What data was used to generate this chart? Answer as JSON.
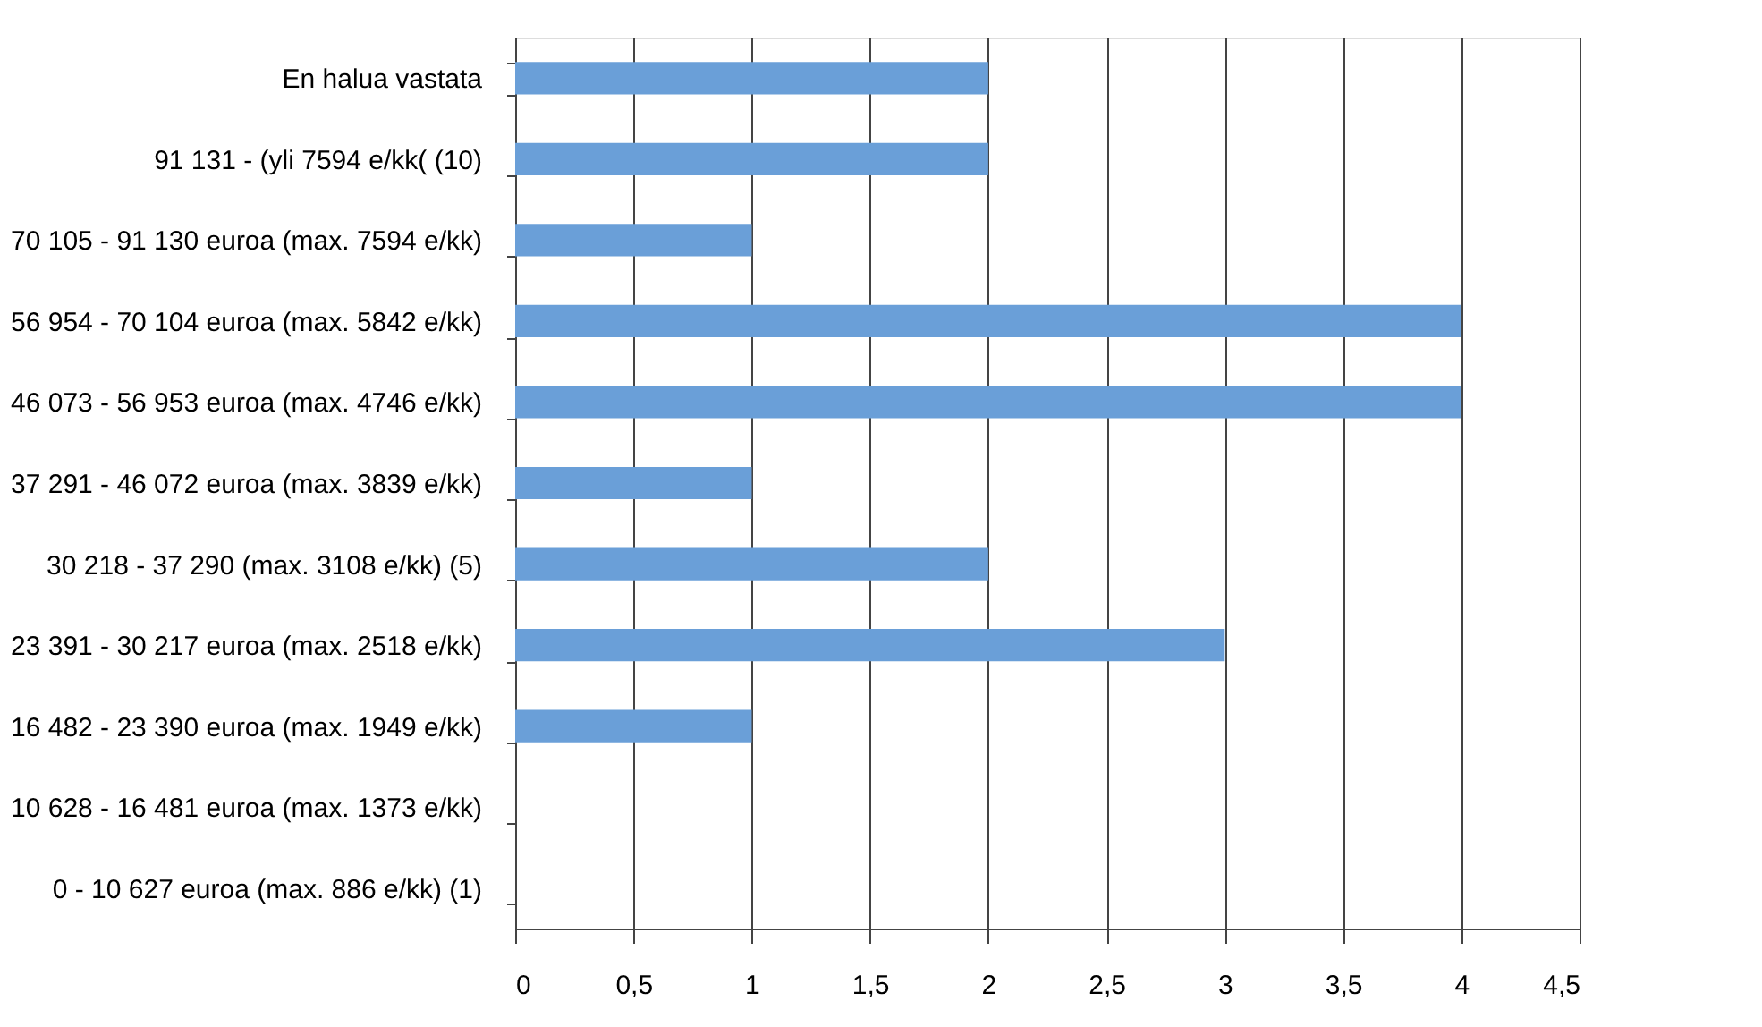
{
  "chart_data": {
    "type": "bar",
    "orientation": "horizontal",
    "categories": [
      "En halua vastata",
      "91 131 - (yli 7594 e/kk( (10)",
      "70 105 - 91 130 euroa (max. 7594 e/kk)",
      "56 954 - 70 104 euroa (max. 5842 e/kk)",
      "46 073 - 56 953 euroa (max. 4746 e/kk)",
      "37 291 - 46 072 euroa (max. 3839 e/kk)",
      "30 218 - 37 290 (max. 3108 e/kk) (5)",
      "23 391 - 30 217 euroa (max. 2518 e/kk)",
      "16 482 - 23 390 euroa (max. 1949 e/kk)",
      "10 628 - 16 481 euroa (max. 1373 e/kk)",
      "0 - 10 627 euroa (max. 886 e/kk) (1)"
    ],
    "values": [
      2,
      2,
      1,
      4,
      4,
      1,
      2,
      3,
      1,
      0,
      0
    ],
    "color": "#6a9fd8",
    "xlim": [
      0,
      4.5
    ],
    "xticks": [
      0,
      {
        "value": 0.5,
        "label": "0,5"
      },
      1,
      {
        "value": 1.5,
        "label": "1,5"
      },
      2,
      {
        "value": 2.5,
        "label": "2,5"
      },
      3,
      {
        "value": 3.5,
        "label": "3,5"
      },
      4,
      {
        "value": 4.5,
        "label": "4,5"
      }
    ],
    "grid": "x"
  }
}
